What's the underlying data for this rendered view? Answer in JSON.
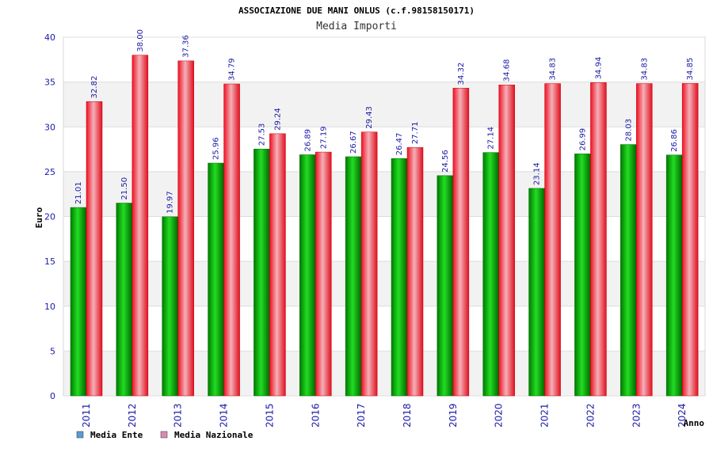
{
  "chart_data": {
    "type": "bar",
    "title": "ASSOCIAZIONE DUE MANI ONLUS (c.f.98158150171)",
    "subtitle": "Media Importi",
    "ylabel": "Euro",
    "xlabel": "Anno",
    "ylim": [
      0,
      40
    ],
    "yticks": [
      0,
      5,
      10,
      15,
      20,
      25,
      30,
      35,
      40
    ],
    "grid": true,
    "legend_position": "bottom-left",
    "categories": [
      "2011",
      "2012",
      "2013",
      "2014",
      "2015",
      "2016",
      "2017",
      "2018",
      "2019",
      "2020",
      "2021",
      "2022",
      "2023",
      "2024"
    ],
    "series": [
      {
        "name": "Media Ente",
        "color": "#00b000",
        "legend_color": "#5b9bd5",
        "values": [
          21.01,
          21.5,
          19.97,
          25.96,
          27.53,
          26.89,
          26.67,
          26.47,
          24.56,
          27.14,
          23.14,
          26.99,
          28.03,
          26.86
        ],
        "labels": [
          "21.01",
          "21.50",
          "19.97",
          "25.96",
          "27.53",
          "26.89",
          "26.67",
          "26.47",
          "24.56",
          "27.14",
          "23.14",
          "26.99",
          "28.03",
          "26.86"
        ]
      },
      {
        "name": "Media Nazionale",
        "color": "#ee1122",
        "legend_color": "#d98cb3",
        "values": [
          32.82,
          38.0,
          37.36,
          34.79,
          29.24,
          27.19,
          29.43,
          27.71,
          34.32,
          34.68,
          34.83,
          34.94,
          34.83,
          34.85
        ],
        "labels": [
          "32.82",
          "38.00",
          "37.36",
          "34.79",
          "29.24",
          "27.19",
          "29.43",
          "27.71",
          "34.32",
          "34.68",
          "34.83",
          "34.94",
          "34.83",
          "34.85"
        ]
      }
    ]
  }
}
